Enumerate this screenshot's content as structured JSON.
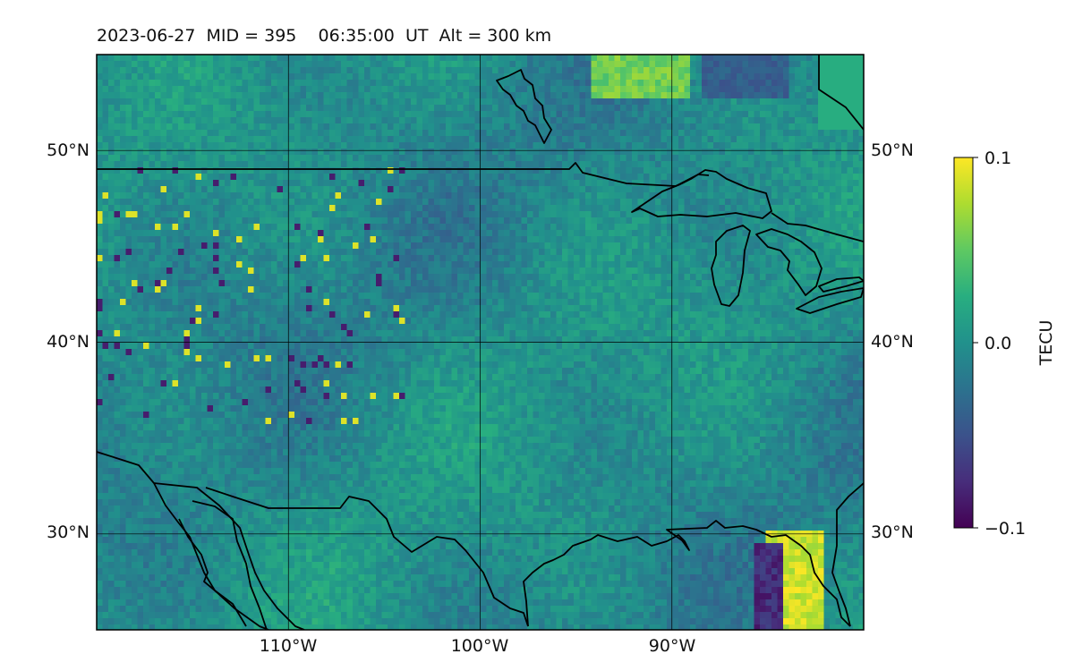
{
  "title": "2023-06-27  MID = 395    06:35:00  UT  Alt = 300 km",
  "map": {
    "extent": {
      "lon_min": -120,
      "lon_max": -80,
      "lat_min": 25,
      "lat_max": 55
    },
    "gridlines": {
      "lons": [
        -110,
        -100,
        -90
      ],
      "lats": [
        30,
        40,
        50
      ]
    },
    "lon_labels": [
      "110°W",
      "100°W",
      "90°W"
    ],
    "lat_labels_left": [
      "30°N",
      "40°N",
      "50°N"
    ],
    "lat_labels_right": [
      "30°N",
      "40°N",
      "50°N"
    ],
    "colormap": "viridis",
    "coastline_color": "#000000"
  },
  "colorbar": {
    "label": "TECU",
    "min": -0.1,
    "max": 0.1,
    "ticks": [
      {
        "value": 0.1,
        "label": "0.1"
      },
      {
        "value": 0.0,
        "label": "0.0"
      },
      {
        "value": -0.1,
        "label": "−0.1"
      }
    ]
  }
}
